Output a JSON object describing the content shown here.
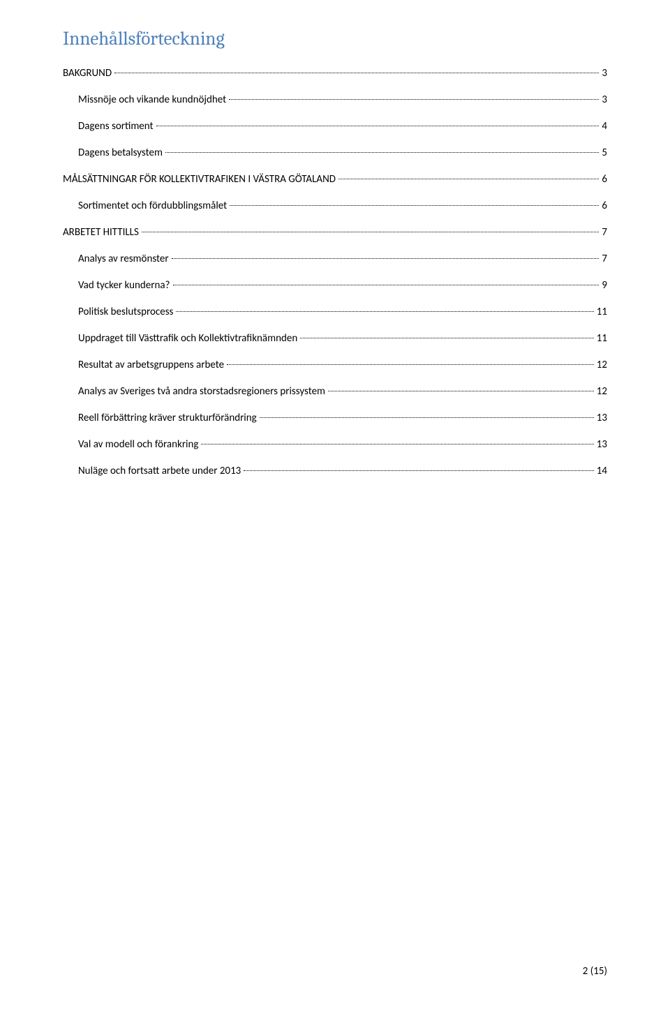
{
  "title": {
    "text": "Innehållsförteckning",
    "color": "#4f81bd"
  },
  "text_color": "#000000",
  "entries": [
    {
      "label": "BAKGRUND",
      "page": "3",
      "level": 0
    },
    {
      "label": "Missnöje och vikande kundnöjdhet",
      "page": "3",
      "level": 1
    },
    {
      "label": "Dagens sortiment",
      "page": "4",
      "level": 1
    },
    {
      "label": "Dagens betalsystem",
      "page": "5",
      "level": 1
    },
    {
      "label": "MÅLSÄTTNINGAR FÖR KOLLEKTIVTRAFIKEN I VÄSTRA GÖTALAND",
      "page": "6",
      "level": 0
    },
    {
      "label": "Sortimentet och fördubblingsmålet",
      "page": "6",
      "level": 1
    },
    {
      "label": "ARBETET HITTILLS",
      "page": "7",
      "level": 0
    },
    {
      "label": "Analys av resmönster",
      "page": "7",
      "level": 1
    },
    {
      "label": "Vad tycker kunderna?",
      "page": "9",
      "level": 1
    },
    {
      "label": "Politisk beslutsprocess",
      "page": "11",
      "level": 1
    },
    {
      "label": "Uppdraget till Västtrafik och Kollektivtrafiknämnden",
      "page": "11",
      "level": 1
    },
    {
      "label": "Resultat av arbetsgruppens arbete",
      "page": "12",
      "level": 1
    },
    {
      "label": "Analys av Sveriges två andra storstadsregioners prissystem",
      "page": "12",
      "level": 1
    },
    {
      "label": "Reell förbättring kräver strukturförändring",
      "page": "13",
      "level": 1
    },
    {
      "label": "Val av modell och förankring",
      "page": "13",
      "level": 1
    },
    {
      "label": "Nuläge och fortsatt arbete under 2013",
      "page": "14",
      "level": 1
    }
  ],
  "footer": {
    "text": "2 (15)"
  }
}
